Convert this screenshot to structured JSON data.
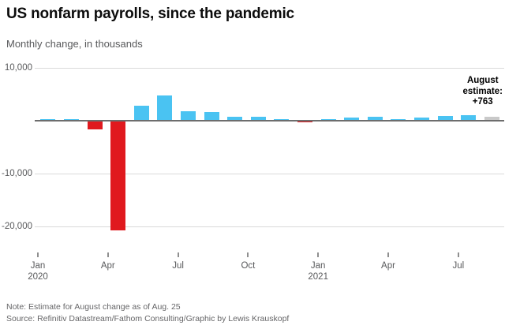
{
  "header": {
    "title": "US nonfarm payrolls, since the pandemic",
    "subtitle": "Monthly change, in thousands"
  },
  "chart_data": {
    "type": "bar",
    "title": "US nonfarm payrolls, since the pandemic",
    "subtitle": "Monthly change, in thousands",
    "unit": "thousands of jobs, monthly change",
    "categories": [
      "Jan 2020",
      "Feb 2020",
      "Mar 2020",
      "Apr 2020",
      "May 2020",
      "Jun 2020",
      "Jul 2020",
      "Aug 2020",
      "Sep 2020",
      "Oct 2020",
      "Nov 2020",
      "Dec 2020",
      "Jan 2021",
      "Feb 2021",
      "Mar 2021",
      "Apr 2021",
      "May 2021",
      "Jun 2021",
      "Jul 2021",
      "Aug 2021 (estimate)"
    ],
    "values": [
      315,
      289,
      -1683,
      -20679,
      2833,
      4846,
      1726,
      1583,
      716,
      680,
      264,
      -306,
      233,
      536,
      785,
      269,
      614,
      962,
      1053,
      763
    ],
    "estimate_index": 19,
    "ylim": [
      -21500,
      10000
    ],
    "grid": true,
    "legend_position": "none",
    "yticks": [
      {
        "value": 10000,
        "label": "10,000"
      },
      {
        "value": -10000,
        "label": "-10,000"
      },
      {
        "value": -20000,
        "label": "-20,000"
      }
    ],
    "xticks": [
      {
        "index": 0,
        "label": "Jan",
        "year": "2020"
      },
      {
        "index": 3,
        "label": "Apr",
        "year": ""
      },
      {
        "index": 6,
        "label": "Jul",
        "year": ""
      },
      {
        "index": 9,
        "label": "Oct",
        "year": ""
      },
      {
        "index": 12,
        "label": "Jan",
        "year": "2021"
      },
      {
        "index": 15,
        "label": "Apr",
        "year": ""
      },
      {
        "index": 18,
        "label": "Jul",
        "year": ""
      }
    ],
    "colors": {
      "positive": "#4ac3f2",
      "negative": "#e0191e",
      "estimate": "#c9c9c9",
      "zero_line": "#6d6d6d",
      "gridline": "#dadada",
      "axis_text": "#58595b"
    },
    "annotation": {
      "lines": [
        "August",
        "estimate:",
        "+763"
      ],
      "target": "Aug 2021"
    }
  },
  "footer": {
    "note": "Note: Estimate for August change as of Aug. 25",
    "source": "Source: Refinitiv Datastream/Fathom Consulting/Graphic by Lewis Krauskopf"
  }
}
